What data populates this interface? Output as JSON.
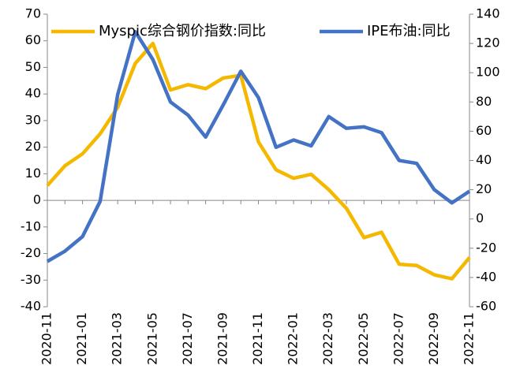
{
  "chart_data": {
    "type": "line",
    "categories": [
      "2020-11",
      null,
      "2021-01",
      null,
      "2021-03",
      null,
      "2021-05",
      null,
      "2021-07",
      null,
      "2021-09",
      null,
      "2021-11",
      null,
      "2022-01",
      null,
      "2022-03",
      null,
      "2022-05",
      null,
      "2022-07",
      null,
      "2022-09",
      null,
      "2022-11"
    ],
    "series": [
      {
        "name": "Myspic综合钢价指数:同比",
        "color": "#f5b800",
        "values": [
          5.6,
          13,
          17.5,
          25,
          35,
          51.5,
          59,
          41.5,
          43.5,
          42,
          46,
          47,
          22,
          11.5,
          8.3,
          9.8,
          4,
          -3,
          -14,
          -12,
          -24,
          -24.5,
          -28,
          -29.5,
          -21.5
        ]
      },
      {
        "name": "IPE布油:同比",
        "color": "#4472c4",
        "axis": "y2",
        "values": [
          -29,
          -22,
          -12,
          12,
          85,
          128,
          109,
          80,
          71,
          56,
          78,
          101,
          83,
          49,
          54,
          50,
          70,
          62,
          63,
          59,
          40,
          38,
          20,
          11,
          19
        ]
      }
    ],
    "ylim": [
      -40,
      70
    ],
    "yticks": [
      -40,
      -30,
      -20,
      -10,
      0,
      10,
      20,
      30,
      40,
      50,
      60,
      70
    ],
    "y2lim": [
      -60,
      140
    ],
    "y2ticks": [
      -60,
      -40,
      -20,
      0,
      20,
      40,
      60,
      80,
      100,
      120,
      140
    ],
    "legend": "top"
  }
}
